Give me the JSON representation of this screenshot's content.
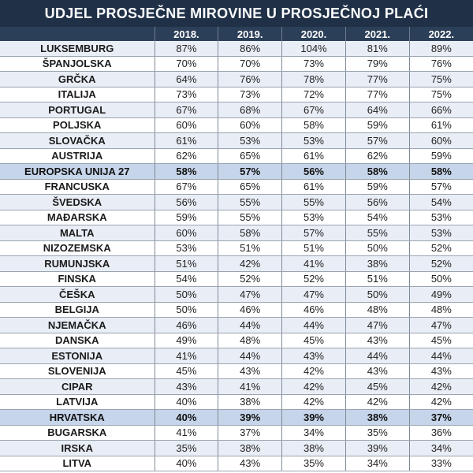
{
  "chart_data": {
    "type": "table",
    "title": "UDJEL PROSJEČNE MIROVINE U PROSJEČNOJ PLAĆI",
    "columns": [
      "2018.",
      "2019.",
      "2020.",
      "2021.",
      "2022."
    ],
    "highlight_rows": [
      "EUROPSKA UNIJA 27",
      "HRVATSKA"
    ],
    "colors": {
      "header_bg": "#1f3047",
      "odd_row": "#e9eef6",
      "highlight_row": "#c6d5ea"
    },
    "rows": [
      {
        "country": "LUKSEMBURG",
        "values": [
          "87%",
          "86%",
          "104%",
          "81%",
          "89%"
        ]
      },
      {
        "country": "ŠPANJOLSKA",
        "values": [
          "70%",
          "70%",
          "73%",
          "79%",
          "76%"
        ]
      },
      {
        "country": "GRČKA",
        "values": [
          "64%",
          "76%",
          "78%",
          "77%",
          "75%"
        ]
      },
      {
        "country": "ITALIJA",
        "values": [
          "73%",
          "73%",
          "72%",
          "77%",
          "75%"
        ]
      },
      {
        "country": "PORTUGAL",
        "values": [
          "67%",
          "68%",
          "67%",
          "64%",
          "66%"
        ]
      },
      {
        "country": "POLJSKA",
        "values": [
          "60%",
          "60%",
          "58%",
          "59%",
          "61%"
        ]
      },
      {
        "country": "SLOVAČKA",
        "values": [
          "61%",
          "53%",
          "53%",
          "57%",
          "60%"
        ]
      },
      {
        "country": "AUSTRIJA",
        "values": [
          "62%",
          "65%",
          "61%",
          "62%",
          "59%"
        ]
      },
      {
        "country": "EUROPSKA UNIJA 27",
        "values": [
          "58%",
          "57%",
          "56%",
          "58%",
          "58%"
        ]
      },
      {
        "country": "FRANCUSKA",
        "values": [
          "67%",
          "65%",
          "61%",
          "59%",
          "57%"
        ]
      },
      {
        "country": "ŠVEDSKA",
        "values": [
          "56%",
          "55%",
          "55%",
          "56%",
          "54%"
        ]
      },
      {
        "country": "MAĐARSKA",
        "values": [
          "59%",
          "55%",
          "53%",
          "54%",
          "53%"
        ]
      },
      {
        "country": "MALTA",
        "values": [
          "60%",
          "58%",
          "57%",
          "55%",
          "53%"
        ]
      },
      {
        "country": "NIZOZEMSKA",
        "values": [
          "53%",
          "51%",
          "51%",
          "50%",
          "52%"
        ]
      },
      {
        "country": "RUMUNJSKA",
        "values": [
          "51%",
          "42%",
          "41%",
          "38%",
          "52%"
        ]
      },
      {
        "country": "FINSKA",
        "values": [
          "54%",
          "52%",
          "52%",
          "51%",
          "50%"
        ]
      },
      {
        "country": "ČEŠKA",
        "values": [
          "50%",
          "47%",
          "47%",
          "50%",
          "49%"
        ]
      },
      {
        "country": "BELGIJA",
        "values": [
          "50%",
          "46%",
          "46%",
          "48%",
          "48%"
        ]
      },
      {
        "country": "NJEMAČKA",
        "values": [
          "46%",
          "44%",
          "44%",
          "47%",
          "47%"
        ]
      },
      {
        "country": "DANSKA",
        "values": [
          "49%",
          "48%",
          "45%",
          "43%",
          "45%"
        ]
      },
      {
        "country": "ESTONIJA",
        "values": [
          "41%",
          "44%",
          "43%",
          "44%",
          "44%"
        ]
      },
      {
        "country": "SLOVENIJA",
        "values": [
          "45%",
          "43%",
          "42%",
          "43%",
          "43%"
        ]
      },
      {
        "country": "CIPAR",
        "values": [
          "43%",
          "41%",
          "42%",
          "45%",
          "42%"
        ]
      },
      {
        "country": "LATVIJA",
        "values": [
          "40%",
          "38%",
          "42%",
          "42%",
          "42%"
        ]
      },
      {
        "country": "HRVATSKA",
        "values": [
          "40%",
          "39%",
          "39%",
          "38%",
          "37%"
        ]
      },
      {
        "country": "BUGARSKA",
        "values": [
          "41%",
          "37%",
          "34%",
          "35%",
          "36%"
        ]
      },
      {
        "country": "IRSKA",
        "values": [
          "35%",
          "38%",
          "38%",
          "39%",
          "34%"
        ]
      },
      {
        "country": "LITVA",
        "values": [
          "40%",
          "43%",
          "35%",
          "34%",
          "33%"
        ]
      }
    ]
  }
}
